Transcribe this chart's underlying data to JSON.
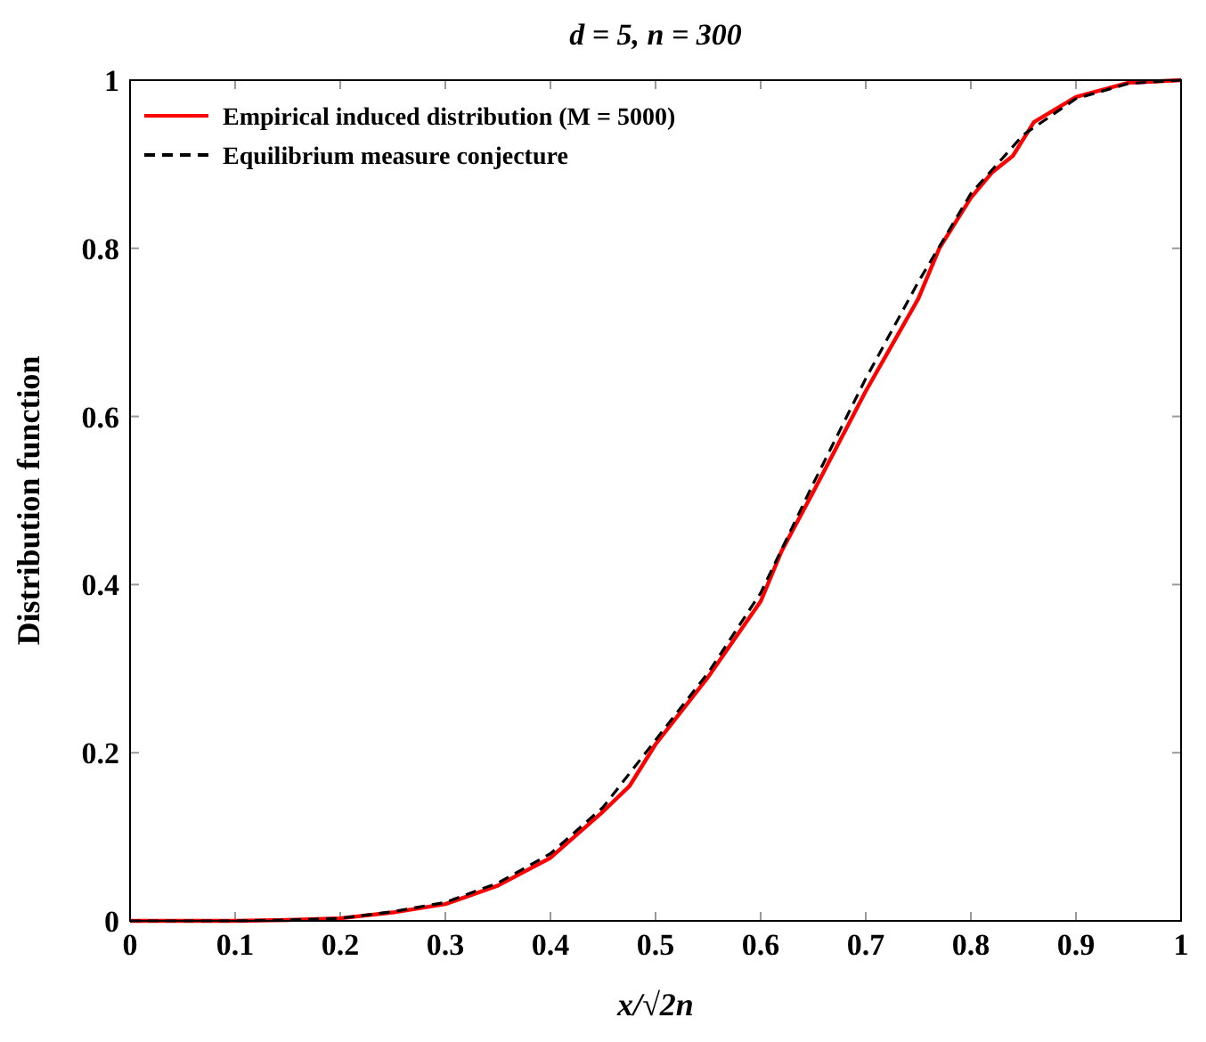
{
  "chart_data": {
    "type": "line",
    "title": "d = 5, n = 300",
    "xlabel": "x/√2n",
    "ylabel": "Distribution function",
    "xlim": [
      0,
      1
    ],
    "ylim": [
      0,
      1
    ],
    "xticks": [
      0,
      0.1,
      0.2,
      0.3,
      0.4,
      0.5,
      0.6,
      0.7,
      0.8,
      0.9,
      1
    ],
    "yticks": [
      0,
      0.2,
      0.4,
      0.6,
      0.8,
      1
    ],
    "grid": false,
    "legend": "top left",
    "series": [
      {
        "name": "Empirical induced distribution (M = 5000)",
        "color": "#ff0000",
        "line_style": "solid",
        "x": [
          0,
          0.1,
          0.15,
          0.2,
          0.25,
          0.3,
          0.35,
          0.4,
          0.45,
          0.475,
          0.5,
          0.55,
          0.6,
          0.62,
          0.65,
          0.7,
          0.75,
          0.77,
          0.8,
          0.82,
          0.84,
          0.86,
          0.9,
          0.95,
          1
        ],
        "values": [
          0,
          0,
          0.001,
          0.003,
          0.01,
          0.02,
          0.042,
          0.075,
          0.13,
          0.16,
          0.21,
          0.29,
          0.38,
          0.44,
          0.51,
          0.63,
          0.74,
          0.8,
          0.86,
          0.89,
          0.91,
          0.95,
          0.98,
          0.997,
          1
        ]
      },
      {
        "name": "Equilibrium measure conjecture",
        "color": "#000000",
        "line_style": "dashed",
        "x": [
          0,
          0.1,
          0.15,
          0.2,
          0.25,
          0.3,
          0.35,
          0.4,
          0.45,
          0.5,
          0.55,
          0.6,
          0.65,
          0.7,
          0.75,
          0.8,
          0.85,
          0.9,
          0.95,
          1
        ],
        "values": [
          0,
          0,
          0.001,
          0.003,
          0.011,
          0.022,
          0.045,
          0.08,
          0.135,
          0.215,
          0.295,
          0.39,
          0.52,
          0.645,
          0.76,
          0.865,
          0.935,
          0.978,
          0.996,
          1
        ]
      }
    ]
  }
}
